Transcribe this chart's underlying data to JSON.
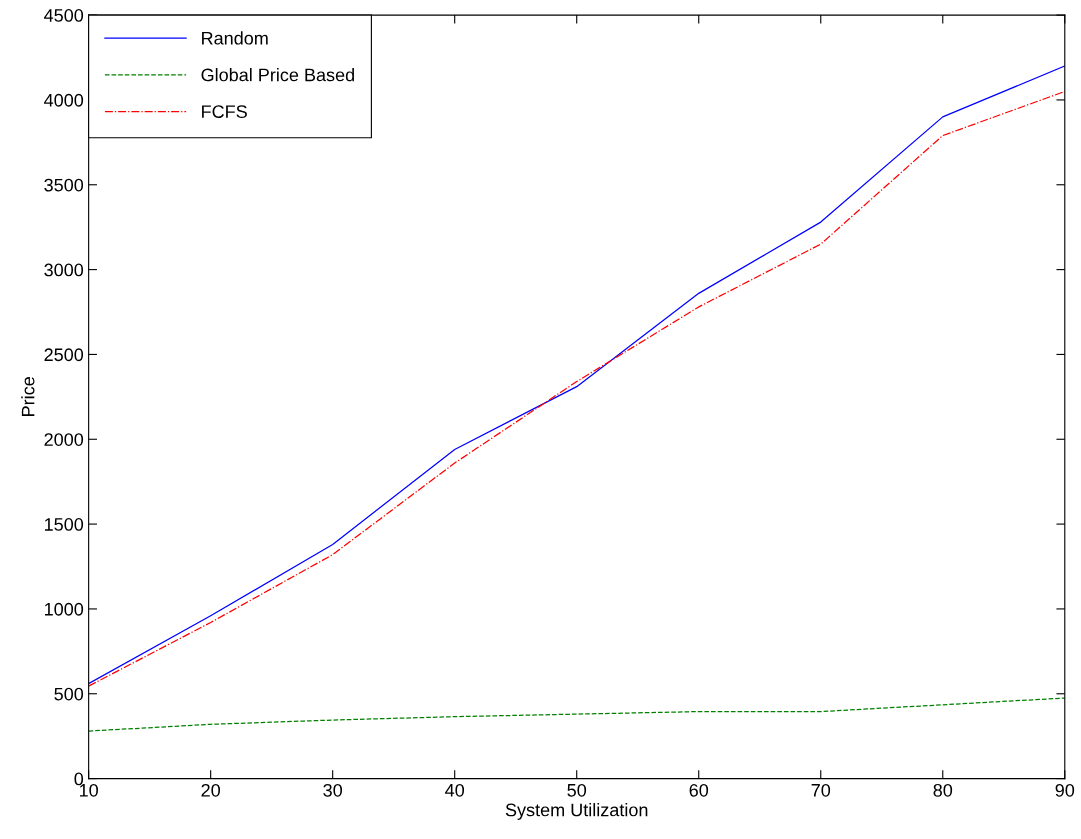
{
  "chart_data": {
    "type": "line",
    "xlabel": "System Utilization",
    "ylabel": "Price",
    "x": [
      10,
      20,
      30,
      40,
      50,
      60,
      70,
      80,
      90
    ],
    "series": [
      {
        "name": "Random",
        "color": "#0000ff",
        "line_style": "solid",
        "values": [
          560,
          960,
          1380,
          1940,
          2310,
          2860,
          3280,
          3900,
          4200
        ]
      },
      {
        "name": "Global Price Based",
        "color": "#008000",
        "line_style": "dashed",
        "values": [
          280,
          320,
          345,
          365,
          380,
          395,
          395,
          435,
          475
        ]
      },
      {
        "name": "FCFS",
        "color": "#ff0000",
        "line_style": "dashdot",
        "values": [
          545,
          920,
          1320,
          1860,
          2340,
          2780,
          3150,
          3790,
          4050
        ]
      }
    ],
    "xlim": [
      10,
      90
    ],
    "xticks": [
      10,
      20,
      30,
      40,
      50,
      60,
      70,
      80,
      90
    ],
    "ylim": [
      0,
      4500
    ],
    "yticks": [
      0,
      500,
      1000,
      1500,
      2000,
      2500,
      3000,
      3500,
      4000,
      4500
    ],
    "grid": false,
    "legend": "top left",
    "marker": "none"
  }
}
